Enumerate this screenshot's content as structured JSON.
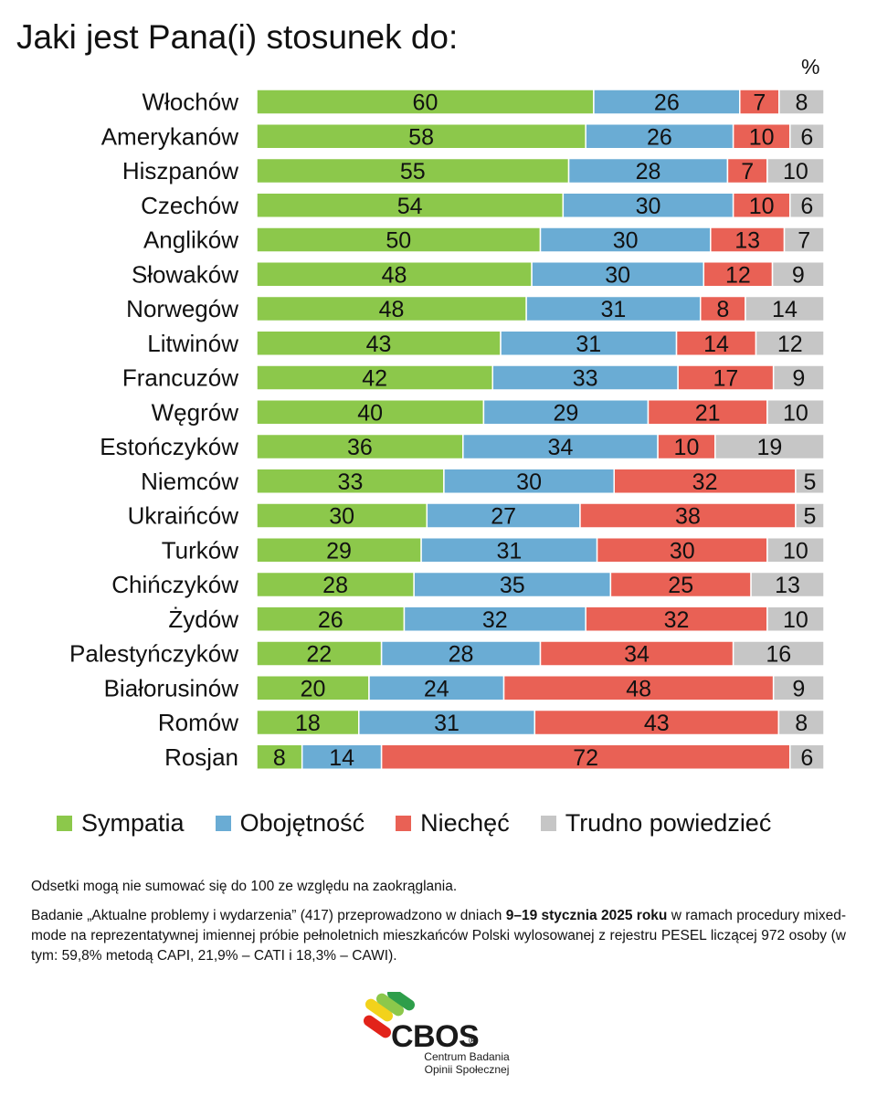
{
  "chart_data": {
    "type": "bar",
    "orientation": "horizontal",
    "stacked": true,
    "title": "Jaki jest Pana(i) stosunek do:",
    "unit_label": "%",
    "categories": [
      "Włochów",
      "Amerykanów",
      "Hiszpanów",
      "Czechów",
      "Anglików",
      "Słowaków",
      "Norwegów",
      "Litwinów",
      "Francuzów",
      "Węgrów",
      "Estończyków",
      "Niemców",
      "Ukraińców",
      "Turków",
      "Chińczyków",
      "Żydów",
      "Palestyńczyków",
      "Białorusinów",
      "Romów",
      "Rosjan"
    ],
    "series": [
      {
        "name": "Sympatia",
        "color": "#8cc84b",
        "values": [
          60,
          58,
          55,
          54,
          50,
          48,
          48,
          43,
          42,
          40,
          36,
          33,
          30,
          29,
          28,
          26,
          22,
          20,
          18,
          8
        ]
      },
      {
        "name": "Obojętność",
        "color": "#6aacd4",
        "values": [
          26,
          26,
          28,
          30,
          30,
          30,
          31,
          31,
          33,
          29,
          34,
          30,
          27,
          31,
          35,
          32,
          28,
          24,
          31,
          14
        ]
      },
      {
        "name": "Niechęć",
        "color": "#e96155",
        "values": [
          7,
          10,
          7,
          10,
          13,
          12,
          8,
          14,
          17,
          21,
          10,
          32,
          38,
          30,
          25,
          32,
          34,
          48,
          43,
          72
        ]
      },
      {
        "name": "Trudno powiedzieć",
        "color": "#c6c6c6",
        "values": [
          8,
          6,
          10,
          6,
          7,
          9,
          14,
          12,
          9,
          10,
          19,
          5,
          5,
          10,
          13,
          10,
          16,
          9,
          8,
          6
        ]
      }
    ],
    "legend_position": "bottom"
  },
  "notes": {
    "rounding": "Odsetki mogą nie sumować się do 100 ze względu na zaokrąglania.",
    "study_before": "Badanie „Aktualne problemy i wydarzenia” (417) przeprowadzono w dniach ",
    "study_bold": "9–19 stycznia 2025 roku",
    "study_after": " w ramach procedury mixed-mode na reprezentatywnej imiennej próbie pełnoletnich mieszkańców Polski wylosowanej z rejestru PESEL liczącej 972 osoby (w tym: 59,8% metodą CAPI, 21,9% – CATI i 18,3% – CAWI)."
  },
  "logo": {
    "name": "CBOS",
    "reg": "®",
    "line1": "Centrum Badania",
    "line2": "Opinii Społecznej"
  }
}
